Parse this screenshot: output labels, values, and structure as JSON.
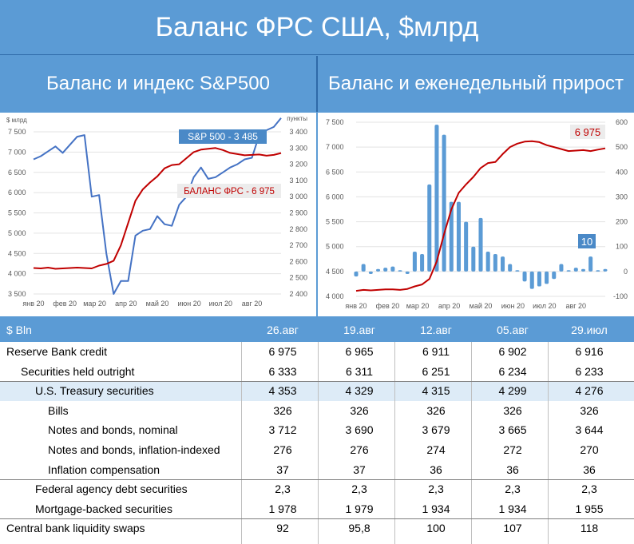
{
  "header": {
    "title": "Баланс ФРС США, $млрд",
    "left_subtitle": "Баланс и индекс S&P500",
    "right_subtitle": "Баланс и еженедельный прирост"
  },
  "chart_data": [
    {
      "type": "line",
      "ylabel_left": "$ млрд",
      "ylabel_right": "пункты",
      "yticks_left": [
        3500,
        4000,
        4500,
        5000,
        5500,
        6000,
        6500,
        7000,
        7500
      ],
      "yticks_left_labels": [
        "3 500",
        "4 000",
        "4 500",
        "5 000",
        "5 500",
        "6 000",
        "6 500",
        "7 000",
        "7 500"
      ],
      "yticks_right": [
        2400,
        2500,
        2600,
        2700,
        2800,
        2900,
        3000,
        3100,
        3200,
        3300,
        3400
      ],
      "yticks_right_labels": [
        "2 400",
        "2 500",
        "2 600",
        "2 700",
        "2 800",
        "2 900",
        "3 000",
        "3 100",
        "3 200",
        "3 300",
        "3 400"
      ],
      "ylim_left": [
        3500,
        7500
      ],
      "ylim_right": [
        2400,
        3400
      ],
      "xticks": [
        "янв 20",
        "фев 20",
        "мар 20",
        "апр 20",
        "май 20",
        "июн 20",
        "июл 20",
        "авг 20"
      ],
      "xticks_at": [
        0,
        4.3,
        8.4,
        12.7,
        17,
        21.4,
        25.7,
        30
      ],
      "x_max": 34,
      "legend_placement": "inline",
      "series": [
        {
          "name": "S&P 500 - 3 485",
          "axis": "right",
          "color": "#4472c4",
          "values": [
            3230,
            3250,
            3280,
            3310,
            3270,
            3320,
            3370,
            3380,
            3000,
            3010,
            2650,
            2400,
            2480,
            2480,
            2760,
            2790,
            2800,
            2880,
            2830,
            2820,
            2950,
            3000,
            3120,
            3180,
            3110,
            3120,
            3150,
            3180,
            3200,
            3230,
            3240,
            3380,
            3410,
            3430,
            3485
          ]
        },
        {
          "name": "БАЛАНС ФРС - 6 975",
          "axis": "left",
          "color": "#c00000",
          "values": [
            4140,
            4130,
            4150,
            4120,
            4130,
            4140,
            4150,
            4140,
            4130,
            4200,
            4240,
            4320,
            4700,
            5250,
            5800,
            6080,
            6250,
            6400,
            6600,
            6680,
            6700,
            6850,
            7000,
            7060,
            7080,
            7100,
            7050,
            6980,
            6950,
            6920,
            6930,
            6940,
            6910,
            6930,
            6975
          ]
        }
      ]
    },
    {
      "type": "bar",
      "yticks_left": [
        4000,
        4500,
        5000,
        5500,
        6000,
        6500,
        7000,
        7500
      ],
      "yticks_left_labels": [
        "4 000",
        "4 500",
        "5 000",
        "5 500",
        "6 000",
        "6 500",
        "7 000",
        "7 500"
      ],
      "yticks_right": [
        -100,
        0,
        100,
        200,
        300,
        400,
        500,
        600
      ],
      "yticks_right_labels": [
        "-100",
        "0",
        "100",
        "200",
        "300",
        "400",
        "500",
        "600"
      ],
      "ylim_left": [
        4000,
        7500
      ],
      "ylim_right": [
        -100,
        600
      ],
      "xticks": [
        "янв 20",
        "фев 20",
        "мар 20",
        "апр 20",
        "май 20",
        "июн 20",
        "июл 20",
        "авг 20"
      ],
      "xticks_at": [
        0,
        4.3,
        8.4,
        12.7,
        17,
        21.4,
        25.7,
        30
      ],
      "x_max": 34,
      "legend_placement": "inline",
      "series": [
        {
          "name": "10",
          "type": "bar",
          "axis": "right",
          "color": "#5b9bd5",
          "values": [
            -20,
            30,
            -10,
            10,
            15,
            20,
            5,
            -10,
            80,
            70,
            350,
            590,
            550,
            280,
            280,
            200,
            100,
            215,
            80,
            70,
            60,
            30,
            5,
            -40,
            -70,
            -60,
            -50,
            -30,
            30,
            5,
            15,
            10,
            60,
            5,
            10
          ]
        },
        {
          "name": "6 975",
          "type": "line",
          "axis": "left",
          "color": "#c00000",
          "values": [
            4110,
            4130,
            4120,
            4130,
            4140,
            4140,
            4130,
            4150,
            4200,
            4240,
            4350,
            4700,
            5250,
            5750,
            6080,
            6250,
            6400,
            6580,
            6680,
            6700,
            6860,
            7000,
            7070,
            7110,
            7120,
            7100,
            7040,
            7000,
            6960,
            6920,
            6930,
            6940,
            6920,
            6950,
            6975
          ]
        }
      ]
    }
  ],
  "table": {
    "header": {
      "label": "$ Bln",
      "cols": [
        "26.авг",
        "19.авг",
        "12.авг",
        "05.авг",
        "29.июл"
      ]
    },
    "rows": [
      {
        "label": "Reserve Bank credit",
        "indent": 0,
        "values": [
          "6 975",
          "6 965",
          "6 911",
          "6 902",
          "6 916"
        ]
      },
      {
        "label": "Securities held outright",
        "indent": 1,
        "values": [
          "6 333",
          "6 311",
          "6 251",
          "6 234",
          "6 233"
        ]
      },
      {
        "label": "U.S. Treasury securities",
        "indent": 2,
        "values": [
          "4 353",
          "4 329",
          "4 315",
          "4 299",
          "4 276"
        ],
        "highlight": true
      },
      {
        "label": "Bills",
        "indent": 3,
        "values": [
          "326",
          "326",
          "326",
          "326",
          "326"
        ]
      },
      {
        "label": "Notes and bonds, nominal",
        "indent": 3,
        "values": [
          "3 712",
          "3 690",
          "3 679",
          "3 665",
          "3 644"
        ]
      },
      {
        "label": "Notes and bonds, inflation-indexed",
        "indent": 3,
        "values": [
          "276",
          "276",
          "274",
          "272",
          "270"
        ]
      },
      {
        "label": "Inflation compensation",
        "indent": 3,
        "values": [
          "37",
          "37",
          "36",
          "36",
          "36"
        ]
      },
      {
        "label": "Federal agency debt securities",
        "indent": 2,
        "values": [
          "2,3",
          "2,3",
          "2,3",
          "2,3",
          "2,3"
        ]
      },
      {
        "label": "Mortgage-backed securities",
        "indent": 2,
        "values": [
          "1 978",
          "1 979",
          "1 934",
          "1 934",
          "1 955"
        ]
      },
      {
        "label": "Central bank liquidity swaps",
        "indent": 0,
        "values": [
          "92",
          "95,8",
          "100",
          "107",
          "118"
        ]
      }
    ]
  }
}
